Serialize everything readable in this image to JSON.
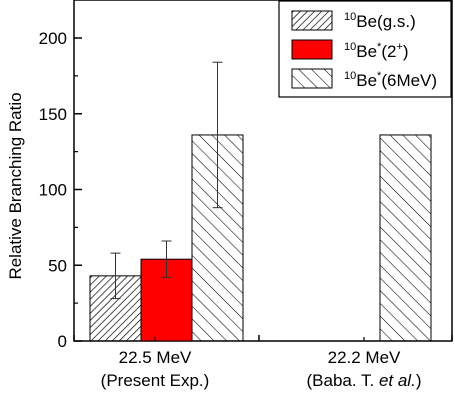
{
  "chart_data": {
    "type": "bar",
    "ylabel": "Relative Branching Ratio",
    "ylim": [
      0,
      200
    ],
    "yticks": [
      0,
      50,
      100,
      150,
      200
    ],
    "grid": false,
    "legend_position": "top-right",
    "groups": [
      {
        "line1": "22.5 MeV",
        "line2": "(Present Exp.)",
        "line2_prefix": "",
        "line2_italic": "",
        "line2_suffix": ""
      },
      {
        "line1": "22.2 MeV",
        "line2": "",
        "line2_prefix": "(Baba. T. ",
        "line2_italic": "et al.",
        "line2_suffix": ")"
      }
    ],
    "series": [
      {
        "name": "10Be(g.s.)",
        "legend": {
          "sup": "10",
          "base": "Be",
          "star": "",
          "paren": "(g.s.)",
          "paren_sup": ""
        },
        "fill": "hatch-dense",
        "color": "#000000",
        "values": [
          43,
          0
        ],
        "errors": [
          15,
          null
        ]
      },
      {
        "name": "10Be*(2+)",
        "legend": {
          "sup": "10",
          "base": "Be",
          "star": "*",
          "paren": "(2",
          "paren_sup": "+",
          "paren_close": ")"
        },
        "fill": "solid",
        "color": "#ff0000",
        "values": [
          54,
          0
        ],
        "errors": [
          12,
          null
        ]
      },
      {
        "name": "10Be*(6MeV)",
        "legend": {
          "sup": "10",
          "base": "Be",
          "star": "*",
          "paren": "(6MeV)",
          "paren_sup": ""
        },
        "fill": "hatch-sparse",
        "color": "#000000",
        "values": [
          136,
          136
        ],
        "errors": [
          48,
          null
        ]
      }
    ]
  }
}
